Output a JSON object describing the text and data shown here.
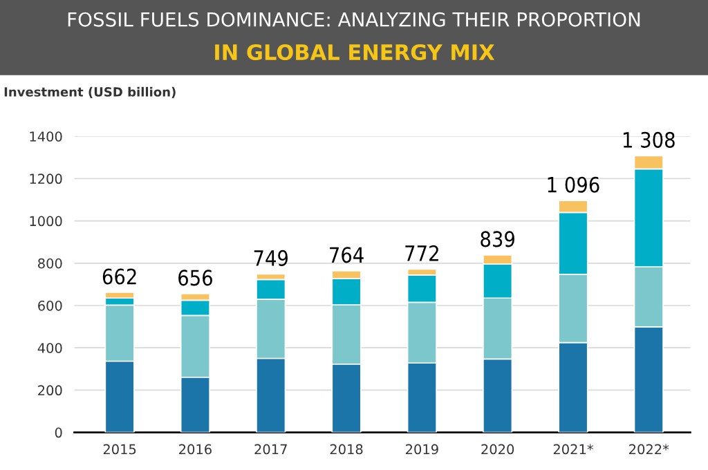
{
  "chart_data": {
    "type": "bar",
    "stacked": true,
    "title": "FOSSIL FUELS DOMINANCE: ANALYZING THEIR PROPORTION",
    "subtitle": "IN GLOBAL ENERGY MIX",
    "ylabel": "Investment (USD billion)",
    "categories": [
      "2015",
      "2016",
      "2017",
      "2018",
      "2019",
      "2020",
      "2021*",
      "2022*"
    ],
    "series": [
      {
        "color": "#1b75a8",
        "values": [
          337,
          261,
          350,
          323,
          328,
          347,
          425,
          499
        ]
      },
      {
        "color": "#7cc7cb",
        "values": [
          265,
          292,
          280,
          280,
          287,
          288,
          323,
          284
        ]
      },
      {
        "color": "#00aec7",
        "values": [
          33,
          72,
          93,
          124,
          129,
          161,
          292,
          463
        ]
      },
      {
        "color": "#f8c261",
        "values": [
          27,
          31,
          26,
          37,
          28,
          43,
          56,
          62
        ]
      }
    ],
    "totals": [
      "662",
      "656",
      "749",
      "764",
      "772",
      "839",
      "1 096",
      "1 308"
    ],
    "ylim": [
      0,
      1400
    ],
    "yticks": [
      0,
      200,
      400,
      600,
      800,
      1000,
      1200,
      1400
    ],
    "grid": "y"
  }
}
